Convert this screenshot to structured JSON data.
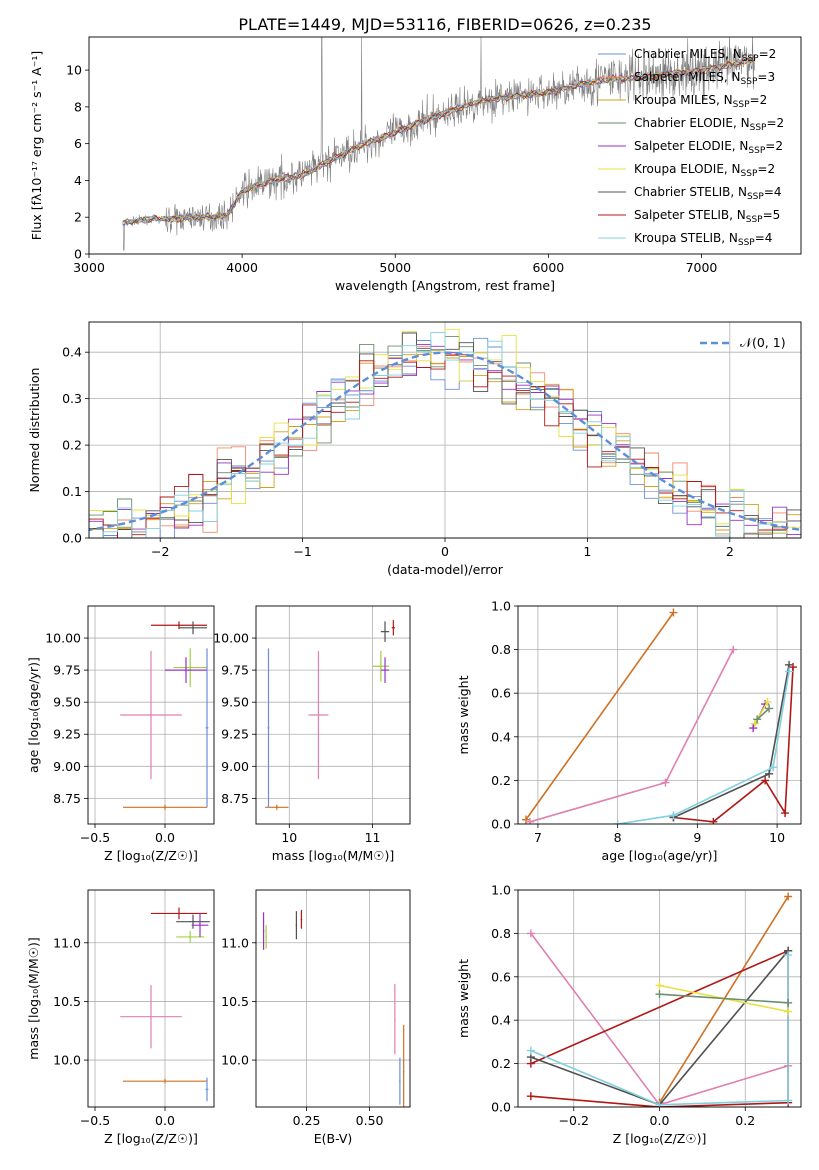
{
  "title": "PLATE=1449, MJD=53116, FIBERID=0626, z=0.235",
  "palette": {
    "c1": "#6a8fd8",
    "c2": "#f08a6a",
    "c3": "#d4a020",
    "c4": "#6b8e6b",
    "c5": "#9b30c8",
    "c6": "#e8e040",
    "c7": "#505050",
    "c8": "#b01818",
    "c9": "#80d0e0",
    "data": "#808080",
    "orange": "#d07020",
    "pink": "#e080b0",
    "green": "#a0d040",
    "grid": "#b0b0b0"
  },
  "chart_data": [
    {
      "id": "spectrum",
      "type": "line",
      "xlabel": "wavelength [Angstrom, rest frame]",
      "ylabel": "Flux [fλ10⁻¹⁷ erg cm⁻² s⁻¹ A⁻¹]",
      "xlim": [
        3000,
        7650
      ],
      "ylim": [
        0,
        11.8
      ],
      "xticks": [
        3000,
        4000,
        5000,
        6000,
        7000
      ],
      "yticks": [
        0,
        2,
        4,
        6,
        8,
        10
      ],
      "legend_position": "right",
      "legend": [
        "Chabrier MILES, N_SSP=2",
        "Salpeter MILES, N_SSP=3",
        "Kroupa MILES, N_SSP=2",
        "Chabrier ELODIE, N_SSP=2",
        "Salpeter ELODIE, N_SSP=2",
        "Kroupa ELODIE, N_SSP=2",
        "Chabrier STELIB, N_SSP=4",
        "Salpeter STELIB, N_SSP=5",
        "Kroupa STELIB, N_SSP=4"
      ],
      "continuum": [
        [
          3220,
          1.7
        ],
        [
          3400,
          1.9
        ],
        [
          3550,
          1.9
        ],
        [
          3700,
          2.0
        ],
        [
          3800,
          2.0
        ],
        [
          3900,
          2.1
        ],
        [
          4000,
          3.4
        ],
        [
          4200,
          4.0
        ],
        [
          4400,
          4.3
        ],
        [
          4600,
          5.2
        ],
        [
          4800,
          6.0
        ],
        [
          5000,
          6.6
        ],
        [
          5200,
          7.3
        ],
        [
          5400,
          7.9
        ],
        [
          5600,
          8.4
        ],
        [
          5800,
          8.6
        ],
        [
          6000,
          8.8
        ],
        [
          6200,
          9.2
        ],
        [
          6400,
          9.5
        ],
        [
          6600,
          9.6
        ],
        [
          6800,
          9.8
        ],
        [
          7000,
          10.0
        ],
        [
          7200,
          10.3
        ],
        [
          7350,
          10.6
        ]
      ]
    },
    {
      "id": "residuals",
      "type": "histogram",
      "xlabel": "(data-model)/error",
      "ylabel": "Normed distribution",
      "xlim": [
        -2.5,
        2.5
      ],
      "ylim": [
        0,
        0.465
      ],
      "xticks": [
        -2,
        -1,
        0,
        1,
        2
      ],
      "yticks": [
        0.0,
        0.1,
        0.2,
        0.3,
        0.4
      ],
      "legend": "𝒩(0, 1)",
      "legend_position": "top-right"
    },
    {
      "id": "age-vs-z",
      "type": "scatter",
      "xlabel": "Z [log₁₀(Z/Z☉)]",
      "ylabel": "age  [log₁₀(age/yr)]",
      "xlim": [
        -0.55,
        0.35
      ],
      "ylim": [
        8.55,
        10.25
      ],
      "xticks": [
        -0.5,
        0.0
      ],
      "yticks": [
        8.75,
        9.0,
        9.25,
        9.5,
        9.75,
        10.0
      ],
      "points": [
        {
          "x": 0.1,
          "y": 10.1,
          "xerr": 0.2,
          "yerr": 0.03,
          "color": "c8"
        },
        {
          "x": 0.2,
          "y": 10.08,
          "xerr": 0.1,
          "yerr": 0.05,
          "color": "c7"
        },
        {
          "x": 0.18,
          "y": 9.77,
          "xerr": 0.12,
          "yerr": 0.15,
          "color": "green"
        },
        {
          "x": 0.15,
          "y": 9.75,
          "xerr": 0.15,
          "yerr": 0.1,
          "color": "c5"
        },
        {
          "x": -0.1,
          "y": 9.4,
          "xerr": 0.22,
          "yerr": 0.5,
          "color": "pink"
        },
        {
          "x": 0.0,
          "y": 8.68,
          "xerr": 0.3,
          "yerr": 0.02,
          "color": "orange"
        },
        {
          "x": 0.3,
          "y": 9.3,
          "xerr": 0.01,
          "yerr": 0.62,
          "color": "c1"
        }
      ]
    },
    {
      "id": "age-vs-mass",
      "type": "scatter",
      "xlabel": "mass [log₁₀(M/M☉)]",
      "ylabel": "",
      "xlim": [
        9.6,
        11.45
      ],
      "ylim": [
        8.55,
        10.25
      ],
      "xticks": [
        10,
        11
      ],
      "yticks": [
        8.75,
        9.0,
        9.25,
        9.5,
        9.75,
        10.0
      ],
      "points": [
        {
          "x": 11.25,
          "y": 10.08,
          "xerr": 0.02,
          "yerr": 0.06,
          "color": "c8"
        },
        {
          "x": 11.15,
          "y": 10.05,
          "xerr": 0.05,
          "yerr": 0.08,
          "color": "c7"
        },
        {
          "x": 11.1,
          "y": 9.78,
          "xerr": 0.1,
          "yerr": 0.12,
          "color": "green"
        },
        {
          "x": 11.15,
          "y": 9.75,
          "xerr": 0.05,
          "yerr": 0.1,
          "color": "c5"
        },
        {
          "x": 10.35,
          "y": 9.4,
          "xerr": 0.12,
          "yerr": 0.5,
          "color": "pink"
        },
        {
          "x": 9.85,
          "y": 8.68,
          "xerr": 0.14,
          "yerr": 0.02,
          "color": "orange"
        },
        {
          "x": 9.75,
          "y": 9.3,
          "xerr": 0.01,
          "yerr": 0.62,
          "color": "c1"
        }
      ]
    },
    {
      "id": "weight-vs-age",
      "type": "line",
      "xlabel": "age  [log₁₀(age/yr)]",
      "ylabel": "mass weight",
      "xlim": [
        6.75,
        10.3
      ],
      "ylim": [
        0,
        1.0
      ],
      "xticks": [
        7,
        8,
        9,
        10
      ],
      "yticks": [
        0.0,
        0.2,
        0.4,
        0.6,
        0.8,
        1.0
      ],
      "series": [
        {
          "color": "orange",
          "points": [
            [
              6.85,
              0.02
            ],
            [
              8.7,
              0.97
            ]
          ]
        },
        {
          "color": "pink",
          "points": [
            [
              6.9,
              0.01
            ],
            [
              8.6,
              0.19
            ],
            [
              9.45,
              0.8
            ]
          ]
        },
        {
          "color": "c8",
          "points": [
            [
              8.7,
              0.03
            ],
            [
              9.2,
              0.01
            ],
            [
              9.85,
              0.2
            ],
            [
              10.1,
              0.05
            ],
            [
              10.2,
              0.72
            ]
          ]
        },
        {
          "color": "c7",
          "points": [
            [
              8.7,
              0.03
            ],
            [
              9.9,
              0.23
            ],
            [
              10.15,
              0.73
            ]
          ]
        },
        {
          "color": "c9",
          "points": [
            [
              8.0,
              0.0
            ],
            [
              8.7,
              0.04
            ],
            [
              9.95,
              0.26
            ],
            [
              10.15,
              0.7
            ]
          ]
        },
        {
          "color": "c5",
          "points": [
            [
              9.7,
              0.44
            ],
            [
              9.85,
              0.55
            ]
          ]
        },
        {
          "color": "c6",
          "points": [
            [
              9.72,
              0.46
            ],
            [
              9.88,
              0.56
            ]
          ]
        },
        {
          "color": "c4",
          "points": [
            [
              9.75,
              0.48
            ],
            [
              9.9,
              0.53
            ]
          ]
        }
      ]
    },
    {
      "id": "mass-vs-z",
      "type": "scatter",
      "xlabel": "Z [log₁₀(Z/Z☉)]",
      "ylabel": "mass [log₁₀(M/M☉)]",
      "xlim": [
        -0.55,
        0.35
      ],
      "ylim": [
        9.6,
        11.45
      ],
      "xticks": [
        -0.5,
        0.0
      ],
      "yticks": [
        10.0,
        10.5,
        11.0
      ],
      "points": [
        {
          "x": 0.1,
          "y": 11.25,
          "xerr": 0.2,
          "yerr": 0.05,
          "color": "c8"
        },
        {
          "x": 0.2,
          "y": 11.18,
          "xerr": 0.12,
          "yerr": 0.06,
          "color": "c7"
        },
        {
          "x": 0.18,
          "y": 11.05,
          "xerr": 0.1,
          "yerr": 0.05,
          "color": "green"
        },
        {
          "x": 0.25,
          "y": 11.15,
          "xerr": 0.06,
          "yerr": 0.1,
          "color": "c5"
        },
        {
          "x": -0.1,
          "y": 10.37,
          "xerr": 0.22,
          "yerr": 0.27,
          "color": "pink"
        },
        {
          "x": 0.0,
          "y": 9.82,
          "xerr": 0.3,
          "yerr": 0.02,
          "color": "orange"
        },
        {
          "x": 0.3,
          "y": 9.75,
          "xerr": 0.01,
          "yerr": 0.1,
          "color": "c1"
        }
      ]
    },
    {
      "id": "mass-vs-ebv",
      "type": "scatter",
      "xlabel": "E(B-V)",
      "ylabel": "",
      "xlim": [
        0.05,
        0.66
      ],
      "ylim": [
        9.6,
        11.45
      ],
      "xticks": [
        0.25,
        0.5
      ],
      "yticks": [
        10.0,
        10.5,
        11.0
      ],
      "points": [
        {
          "x": 0.08,
          "y": 11.1,
          "xerr": 0.0,
          "yerr": 0.16,
          "color": "c5"
        },
        {
          "x": 0.09,
          "y": 11.05,
          "xerr": 0.0,
          "yerr": 0.1,
          "color": "green"
        },
        {
          "x": 0.21,
          "y": 11.15,
          "xerr": 0.0,
          "yerr": 0.12,
          "color": "c7"
        },
        {
          "x": 0.23,
          "y": 11.2,
          "xerr": 0.0,
          "yerr": 0.08,
          "color": "c8"
        },
        {
          "x": 0.6,
          "y": 10.35,
          "xerr": 0.0,
          "yerr": 0.3,
          "color": "pink"
        },
        {
          "x": 0.62,
          "y": 9.82,
          "xerr": 0.0,
          "yerr": 0.2,
          "color": "c1"
        },
        {
          "x": 0.635,
          "y": 9.9,
          "xerr": 0.0,
          "yerr": 0.4,
          "color": "orange"
        }
      ]
    },
    {
      "id": "weight-vs-z",
      "type": "line",
      "xlabel": "Z [log₁₀(Z/Z☉)]",
      "ylabel": "mass weight",
      "xlim": [
        -0.33,
        0.33
      ],
      "ylim": [
        0,
        1.0
      ],
      "xticks": [
        -0.2,
        0.0,
        0.2
      ],
      "yticks": [
        0.0,
        0.2,
        0.4,
        0.6,
        0.8,
        1.0
      ],
      "series": [
        {
          "color": "orange",
          "points": [
            [
              0.0,
              0.02
            ],
            [
              0.3,
              0.97
            ]
          ]
        },
        {
          "color": "pink",
          "points": [
            [
              -0.3,
              0.8
            ],
            [
              0.0,
              0.01
            ],
            [
              0.3,
              0.19
            ]
          ]
        },
        {
          "color": "c8",
          "points": [
            [
              -0.3,
              0.05
            ],
            [
              0.0,
              0.0
            ],
            [
              0.3,
              0.02
            ],
            [
              0.3,
              0.72
            ],
            [
              -0.3,
              0.2
            ]
          ]
        },
        {
          "color": "c7",
          "points": [
            [
              -0.3,
              0.23
            ],
            [
              0.0,
              0.01
            ],
            [
              0.3,
              0.72
            ]
          ]
        },
        {
          "color": "c9",
          "points": [
            [
              -0.3,
              0.26
            ],
            [
              0.0,
              0.01
            ],
            [
              0.3,
              0.03
            ],
            [
              0.3,
              0.7
            ]
          ]
        },
        {
          "color": "c6",
          "points": [
            [
              0.0,
              0.56
            ],
            [
              0.3,
              0.44
            ]
          ]
        },
        {
          "color": "c4",
          "points": [
            [
              0.0,
              0.52
            ],
            [
              0.3,
              0.48
            ]
          ]
        }
      ]
    }
  ]
}
